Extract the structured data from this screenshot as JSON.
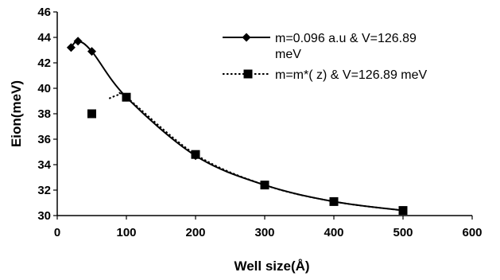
{
  "chart_data": {
    "type": "line",
    "xlabel": "Well size(Å)",
    "ylabel": "Eion(meV)",
    "xlim": [
      0,
      600
    ],
    "ylim": [
      30,
      46
    ],
    "x_ticks": [
      0,
      100,
      200,
      300,
      400,
      500,
      600
    ],
    "y_ticks": [
      30,
      32,
      34,
      36,
      38,
      40,
      42,
      44,
      46
    ],
    "grid": false,
    "legend_position": "top-right",
    "series": [
      {
        "name": "m=0.096 a.u & V=126.89 meV",
        "name_lines": [
          "m=0.096 a.u & V=126.89",
          "meV"
        ],
        "marker": "diamond",
        "line_style": "solid",
        "color": "#000000",
        "x": [
          20,
          30,
          50,
          100,
          200,
          300,
          400,
          500
        ],
        "y": [
          43.2,
          43.7,
          42.9,
          39.3,
          34.7,
          32.4,
          31.1,
          30.4
        ]
      },
      {
        "name": "m=m*( z) & V=126.89 meV",
        "name_lines": [
          "m=m*( z) & V=126.89 meV"
        ],
        "marker": "square",
        "line_style": "dotted",
        "color": "#000000",
        "x": [
          50,
          100,
          200,
          300,
          400,
          500
        ],
        "y": [
          38.0,
          39.3,
          34.8,
          32.4,
          31.1,
          30.4
        ],
        "curve_peak": [
          90,
          39.5
        ]
      }
    ]
  }
}
